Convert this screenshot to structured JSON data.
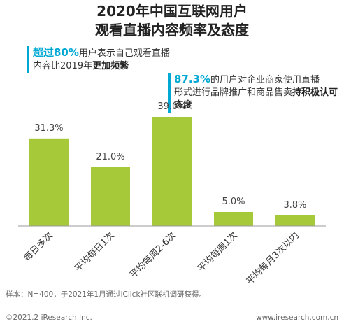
{
  "title_line1": "2020年中国互联网用户",
  "title_line2": "观看直播内容频率及态度",
  "callout1": {
    "hl": "超过80%",
    "text1": "用户表示自己观看直播",
    "text2": "内容比2019年",
    "bold": "更加频繁"
  },
  "callout2": {
    "hl": "87.3%",
    "text1": "的用户对企业商家使用直播",
    "text2": "形式进行品牌推广和商品售卖",
    "bold": "持积极认可态度"
  },
  "note": "样本：N=400，于2021年1月通过iClick社区联机调研获得。",
  "footer_left": "©2021.2 iResearch Inc.",
  "footer_right": "www.iresearch.com.cn",
  "colors": {
    "bar": "#a6c93a",
    "accent": "#00a9d4",
    "axis": "#999999"
  },
  "chart_data": {
    "type": "bar",
    "categories": [
      "每日多次",
      "平均每日1次",
      "平均每周2-6次",
      "平均每周1次",
      "平均每月3次以内"
    ],
    "values": [
      31.3,
      21.0,
      39.0,
      5.0,
      3.8
    ],
    "value_labels": [
      "31.3%",
      "21.0%",
      "39.0%",
      "5.0%",
      "3.8%"
    ],
    "ylim": [
      0,
      40
    ]
  }
}
